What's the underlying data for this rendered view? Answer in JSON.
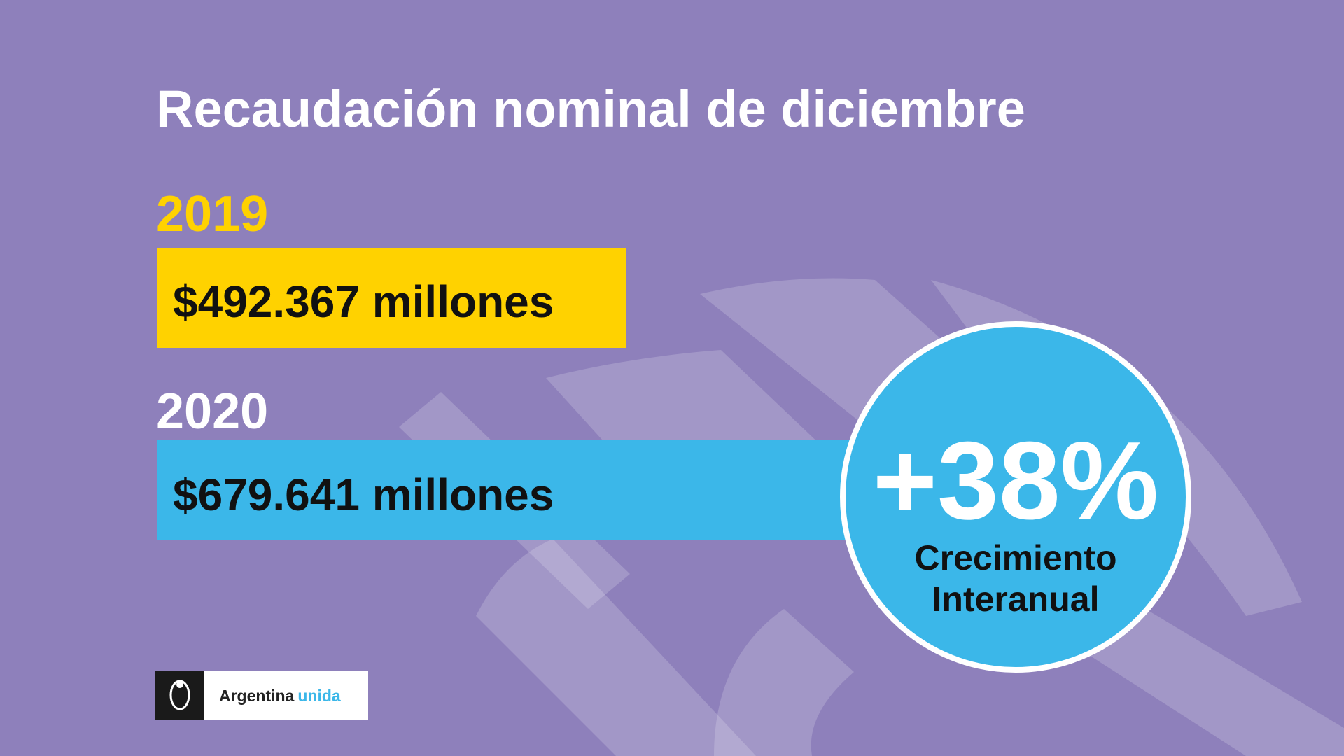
{
  "title": "Recaudación nominal de diciembre",
  "items": [
    {
      "year": "2019",
      "amount": "$492.367 millones"
    },
    {
      "year": "2020",
      "amount": "$679.641 millones"
    }
  ],
  "badge": {
    "value": "+38%",
    "label": [
      "Crecimiento",
      "Interanual"
    ]
  },
  "logo": {
    "brand": "Argentina",
    "highlight": "unida"
  }
}
